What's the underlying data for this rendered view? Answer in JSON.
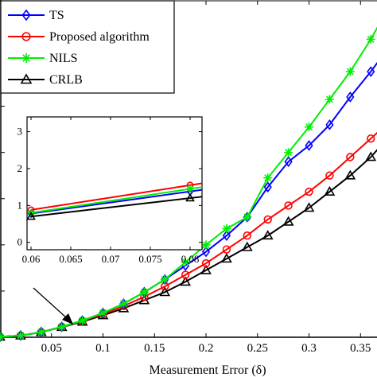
{
  "chart_data": [
    {
      "type": "line",
      "title": "",
      "xlabel": "Measurement Error (δ)",
      "ylabel": "",
      "xlim": [
        0,
        0.37
      ],
      "ylim": [
        0,
        14
      ],
      "x_ticks": [
        "0.05",
        "0.1",
        "0.15",
        "0.2",
        "0.25",
        "0.3",
        "0.35"
      ],
      "grid": false,
      "legend_position": "top-left",
      "x": [
        0,
        0.02,
        0.04,
        0.06,
        0.08,
        0.1,
        0.12,
        0.14,
        0.16,
        0.18,
        0.2,
        0.22,
        0.24,
        0.26,
        0.28,
        0.3,
        0.32,
        0.34,
        0.36,
        0.37
      ],
      "series": [
        {
          "name": "TS",
          "color": "#0000ff",
          "marker": "diamond",
          "values": [
            0.02,
            0.07,
            0.22,
            0.45,
            0.72,
            1.05,
            1.45,
            1.95,
            2.5,
            3.1,
            3.7,
            4.4,
            5.2,
            6.5,
            7.6,
            8.3,
            9.2,
            10.4,
            11.5,
            12.1
          ]
        },
        {
          "name": "Proposed algorithm",
          "color": "#ff0000",
          "marker": "circle",
          "values": [
            0.02,
            0.07,
            0.22,
            0.45,
            0.7,
            1.0,
            1.35,
            1.75,
            2.2,
            2.7,
            3.2,
            3.8,
            4.4,
            5.1,
            5.7,
            6.3,
            7.0,
            7.8,
            8.6,
            9.0
          ]
        },
        {
          "name": "NILS",
          "color": "#00ee00",
          "marker": "star",
          "values": [
            0.02,
            0.07,
            0.22,
            0.45,
            0.72,
            1.05,
            1.45,
            1.95,
            2.5,
            3.25,
            4.0,
            4.7,
            5.2,
            6.9,
            8.0,
            9.1,
            10.3,
            11.5,
            12.9,
            13.7
          ]
        },
        {
          "name": "CRLB",
          "color": "#000000",
          "marker": "triangle",
          "values": [
            0.02,
            0.07,
            0.22,
            0.44,
            0.67,
            0.95,
            1.25,
            1.6,
            1.95,
            2.4,
            2.9,
            3.4,
            3.9,
            4.4,
            5.0,
            5.6,
            6.3,
            7.0,
            7.8,
            8.3
          ]
        }
      ]
    },
    {
      "type": "line",
      "title": "",
      "inset": true,
      "xlim": [
        0.0595,
        0.0815
      ],
      "ylim": [
        -0.2,
        3.4
      ],
      "x_ticks": [
        "0.06",
        "0.065",
        "0.07",
        "0.075",
        "0.08"
      ],
      "y_ticks": [
        "0",
        "1",
        "2",
        "3"
      ],
      "x": [
        0.06,
        0.08
      ],
      "series": [
        {
          "name": "TS",
          "color": "#0000ff",
          "marker": "diamond",
          "values": [
            0.78,
            1.38
          ]
        },
        {
          "name": "Proposed algorithm",
          "color": "#ff0000",
          "marker": "circle",
          "values": [
            0.88,
            1.55
          ]
        },
        {
          "name": "NILS",
          "color": "#00ee00",
          "marker": "star",
          "values": [
            0.8,
            1.45
          ]
        },
        {
          "name": "CRLB",
          "color": "#000000",
          "marker": "triangle",
          "values": [
            0.7,
            1.2
          ]
        }
      ]
    }
  ]
}
